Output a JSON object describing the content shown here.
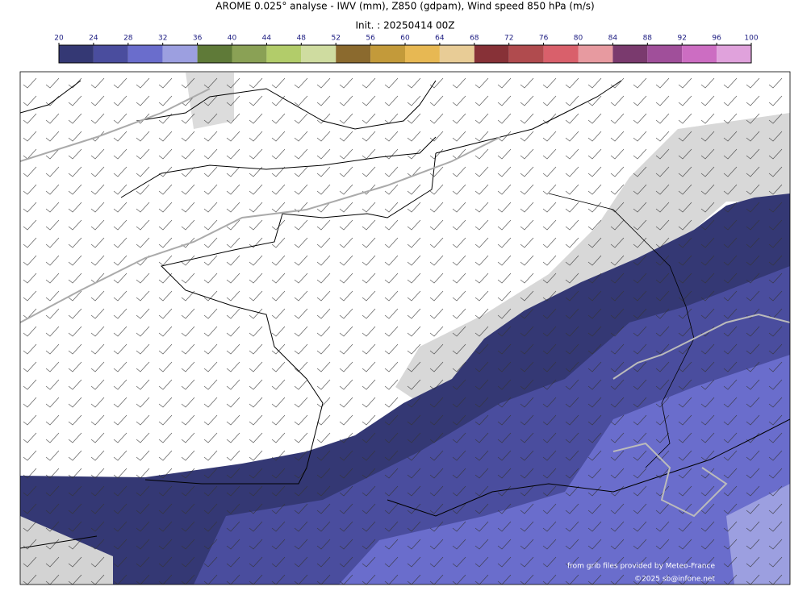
{
  "header": {
    "title": "AROME 0.025° analyse - IWV (mm), Z850 (gdpam), Wind speed 850 hPa (m/s)",
    "init": "Init. : 20250414 00Z"
  },
  "colorbar": {
    "ticks": [
      20,
      24,
      28,
      32,
      36,
      40,
      44,
      48,
      52,
      56,
      60,
      64,
      68,
      72,
      76,
      80,
      84,
      88,
      92,
      96,
      100
    ],
    "colors": [
      "#343874",
      "#4a4d9e",
      "#6a6dcc",
      "#9c9fe0",
      "#5f7a38",
      "#8aa155",
      "#b2cc6a",
      "#cfdca0",
      "#8b6a2e",
      "#c39a3a",
      "#e7b853",
      "#e8cc96",
      "#873137",
      "#b04b4e",
      "#d9606b",
      "#e79aa0",
      "#7a3a6e",
      "#a04f9a",
      "#cc6dc2",
      "#e0a2dc"
    ]
  },
  "credits": {
    "source": "from grib files provided by Meteo-France",
    "copyright": "©2025 sb@infone.net"
  }
}
